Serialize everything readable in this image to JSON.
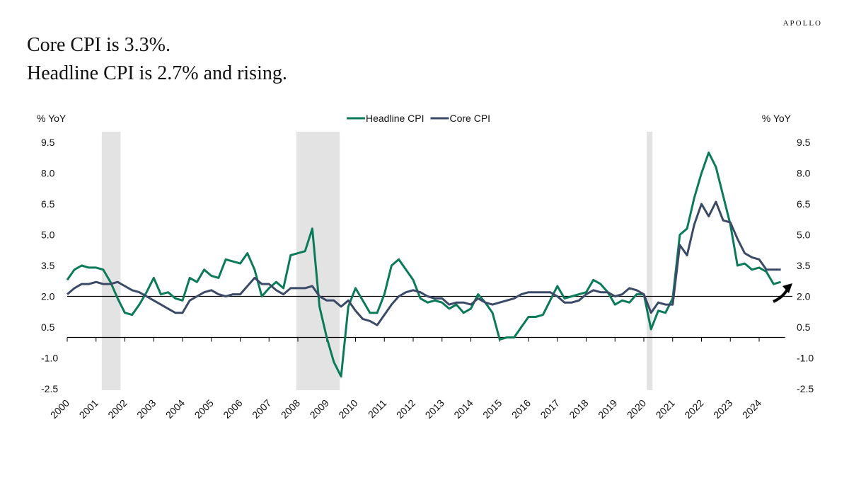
{
  "brand": "APOLLO",
  "chart_data": {
    "type": "line",
    "title": "Core CPI is 3.3%.",
    "subtitle": "Headline CPI is 2.7% and rising.",
    "y_label": "% YoY",
    "y2_label": "% YoY",
    "x": [
      2000,
      2000.25,
      2000.5,
      2000.75,
      2001,
      2001.25,
      2001.5,
      2001.75,
      2002,
      2002.25,
      2002.5,
      2002.75,
      2003,
      2003.25,
      2003.5,
      2003.75,
      2004,
      2004.25,
      2004.5,
      2004.75,
      2005,
      2005.25,
      2005.5,
      2005.75,
      2006,
      2006.25,
      2006.5,
      2006.75,
      2007,
      2007.25,
      2007.5,
      2007.75,
      2008,
      2008.25,
      2008.5,
      2008.75,
      2009,
      2009.25,
      2009.5,
      2009.75,
      2010,
      2010.25,
      2010.5,
      2010.75,
      2011,
      2011.25,
      2011.5,
      2011.75,
      2012,
      2012.25,
      2012.5,
      2012.75,
      2013,
      2013.25,
      2013.5,
      2013.75,
      2014,
      2014.25,
      2014.5,
      2014.75,
      2015,
      2015.25,
      2015.5,
      2015.75,
      2016,
      2016.25,
      2016.5,
      2016.75,
      2017,
      2017.25,
      2017.5,
      2017.75,
      2018,
      2018.25,
      2018.5,
      2018.75,
      2019,
      2019.25,
      2019.5,
      2019.75,
      2020,
      2020.25,
      2020.5,
      2020.75,
      2021,
      2021.25,
      2021.5,
      2021.75,
      2022,
      2022.25,
      2022.5,
      2022.75,
      2023,
      2023.25,
      2023.5,
      2023.75,
      2024,
      2024.25,
      2024.5,
      2024.75
    ],
    "series": [
      {
        "name": "Headline CPI",
        "color": "#0b7a58",
        "values": [
          2.8,
          3.3,
          3.5,
          3.4,
          3.4,
          3.3,
          2.7,
          1.9,
          1.2,
          1.1,
          1.6,
          2.2,
          2.9,
          2.1,
          2.2,
          1.9,
          1.8,
          2.9,
          2.7,
          3.3,
          3.0,
          2.9,
          3.8,
          3.7,
          3.6,
          4.1,
          3.3,
          2.0,
          2.4,
          2.7,
          2.4,
          4.0,
          4.1,
          4.2,
          5.3,
          1.5,
          0.0,
          -1.2,
          -1.9,
          1.5,
          2.4,
          1.8,
          1.2,
          1.2,
          2.1,
          3.5,
          3.8,
          3.3,
          2.8,
          1.9,
          1.7,
          1.8,
          1.7,
          1.4,
          1.6,
          1.2,
          1.4,
          2.1,
          1.7,
          1.2,
          -0.1,
          0.0,
          0.0,
          0.5,
          1.0,
          1.0,
          1.1,
          1.8,
          2.5,
          1.9,
          2.0,
          2.1,
          2.2,
          2.8,
          2.6,
          2.2,
          1.6,
          1.8,
          1.7,
          2.1,
          2.1,
          0.4,
          1.3,
          1.2,
          1.9,
          5.0,
          5.3,
          6.8,
          8.0,
          9.0,
          8.3,
          6.9,
          5.5,
          3.5,
          3.6,
          3.3,
          3.4,
          3.2,
          2.6,
          2.7
        ]
      },
      {
        "name": "Core CPI",
        "color": "#3b4a66",
        "values": [
          2.1,
          2.4,
          2.6,
          2.6,
          2.7,
          2.6,
          2.6,
          2.7,
          2.5,
          2.3,
          2.2,
          2.0,
          1.8,
          1.6,
          1.4,
          1.2,
          1.2,
          1.8,
          2.0,
          2.2,
          2.3,
          2.1,
          2.0,
          2.1,
          2.1,
          2.5,
          2.9,
          2.6,
          2.6,
          2.3,
          2.1,
          2.4,
          2.4,
          2.4,
          2.5,
          2.0,
          1.8,
          1.8,
          1.5,
          1.8,
          1.3,
          0.9,
          0.8,
          0.6,
          1.1,
          1.6,
          2.0,
          2.2,
          2.3,
          2.2,
          2.0,
          1.9,
          1.9,
          1.6,
          1.7,
          1.7,
          1.6,
          1.9,
          1.7,
          1.6,
          1.7,
          1.8,
          1.9,
          2.1,
          2.2,
          2.2,
          2.2,
          2.2,
          2.0,
          1.7,
          1.7,
          1.8,
          2.1,
          2.3,
          2.2,
          2.2,
          2.0,
          2.1,
          2.4,
          2.3,
          2.1,
          1.2,
          1.7,
          1.6,
          1.6,
          4.5,
          4.0,
          5.5,
          6.5,
          5.9,
          6.6,
          5.7,
          5.6,
          4.8,
          4.1,
          3.9,
          3.8,
          3.3,
          3.3,
          3.3
        ]
      }
    ],
    "recessions": [
      [
        2001.2,
        2001.85
      ],
      [
        2007.95,
        2009.45
      ],
      [
        2020.1,
        2020.3
      ]
    ],
    "reference_line": 2,
    "xlim": [
      2000,
      2024.9
    ],
    "xticks": [
      2000,
      2001,
      2002,
      2003,
      2004,
      2005,
      2006,
      2007,
      2008,
      2009,
      2010,
      2011,
      2012,
      2013,
      2014,
      2015,
      2016,
      2017,
      2018,
      2019,
      2020,
      2021,
      2022,
      2023,
      2024
    ],
    "ylim": [
      -2.5,
      9.5
    ],
    "yticks": [
      -2.5,
      {
        "value": -1,
        "label": "-1.0"
      },
      0.5,
      {
        "value": 2,
        "label": "2.0"
      },
      3.5,
      {
        "value": 5,
        "label": "5.0"
      },
      6.5,
      {
        "value": 8,
        "label": "8.0"
      },
      9.5
    ],
    "y2lim": [
      -2.5,
      9.5
    ],
    "y2ticks": [
      -2.5,
      {
        "value": -1,
        "label": "-1.0"
      },
      0.5,
      {
        "value": 2,
        "label": "2.0"
      },
      3.5,
      {
        "value": 5,
        "label": "5.0"
      },
      6.5,
      {
        "value": 8,
        "label": "8.0"
      },
      9.5
    ],
    "legend": "top"
  }
}
